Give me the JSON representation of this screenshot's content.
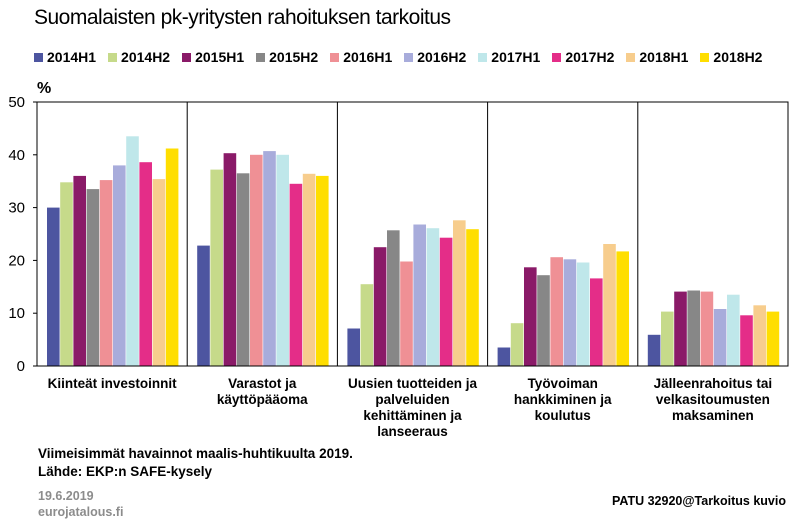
{
  "title": "Suomalaisten pk-yritysten rahoituksen tarkoitus",
  "colors": {
    "2014H1": "#4d55a0",
    "2014H2": "#c6da8a",
    "2015H1": "#8a1a68",
    "2015H2": "#878787",
    "2016H1": "#ef9095",
    "2016H2": "#a8acdb",
    "2017H1": "#bfe7ea",
    "2017H2": "#e42d88",
    "2018H1": "#f7cd8d",
    "2018H2": "#ffde00"
  },
  "chart_data": {
    "type": "bar",
    "ylabel": "%",
    "ylim": [
      0,
      50
    ],
    "yticks": [
      0,
      10,
      20,
      30,
      40,
      50
    ],
    "grid": false,
    "legend_position": "top",
    "categories": [
      "Kiinteät investoinnit",
      "Varastot ja käyttöpääoma",
      "Uusien tuotteiden ja palveluiden kehittäminen ja lanseeraus",
      "Työvoiman hankkiminen ja koulutus",
      "Jälleenrahoitus tai velkasitoumusten maksaminen"
    ],
    "category_lines": [
      [
        "Kiinteät investoinnit"
      ],
      [
        "Varastot ja",
        "käyttöpääoma"
      ],
      [
        "Uusien tuotteiden ja",
        "palveluiden",
        "kehittäminen ja",
        "lanseeraus"
      ],
      [
        "Työvoiman",
        "hankkiminen ja",
        "koulutus"
      ],
      [
        "Jälleenrahoitus tai",
        "velkasitoumusten",
        "maksaminen"
      ]
    ],
    "series": [
      {
        "name": "2014H1",
        "values": [
          30.0,
          22.8,
          7.1,
          3.5,
          5.9
        ]
      },
      {
        "name": "2014H2",
        "values": [
          34.8,
          37.2,
          15.5,
          8.1,
          10.3
        ]
      },
      {
        "name": "2015H1",
        "values": [
          36.0,
          40.3,
          22.5,
          18.7,
          14.1
        ]
      },
      {
        "name": "2015H2",
        "values": [
          33.5,
          36.5,
          25.7,
          17.2,
          14.3
        ]
      },
      {
        "name": "2016H1",
        "values": [
          35.2,
          40.0,
          19.8,
          20.6,
          14.1
        ]
      },
      {
        "name": "2016H2",
        "values": [
          38.0,
          40.7,
          26.8,
          20.2,
          10.8
        ]
      },
      {
        "name": "2017H1",
        "values": [
          43.5,
          40.0,
          26.1,
          19.6,
          13.5
        ]
      },
      {
        "name": "2017H2",
        "values": [
          38.6,
          34.5,
          24.3,
          16.6,
          9.6
        ]
      },
      {
        "name": "2018H1",
        "values": [
          35.4,
          36.4,
          27.6,
          23.1,
          11.5
        ]
      },
      {
        "name": "2018H2",
        "values": [
          41.2,
          36.0,
          25.9,
          21.7,
          10.3
        ]
      }
    ]
  },
  "footer": {
    "note1": "Viimeisimmät havainnot maalis-huhtikuulta 2019.",
    "note2": "Lähde: EKP:n SAFE-kysely",
    "date": "19.6.2019",
    "site": "eurojatalous.fi",
    "ref": "PATU 32920@Tarkoitus kuvio"
  }
}
